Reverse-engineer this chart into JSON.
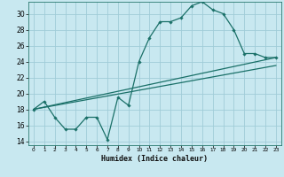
{
  "xlabel": "Humidex (Indice chaleur)",
  "bg_color": "#c8e8f0",
  "grid_color": "#a0ccd8",
  "line_color": "#1a7068",
  "xlim": [
    -0.5,
    23.5
  ],
  "ylim": [
    13.5,
    31.5
  ],
  "xticks": [
    0,
    1,
    2,
    3,
    4,
    5,
    6,
    7,
    8,
    9,
    10,
    11,
    12,
    13,
    14,
    15,
    16,
    17,
    18,
    19,
    20,
    21,
    22,
    23
  ],
  "yticks": [
    14,
    16,
    18,
    20,
    22,
    24,
    26,
    28,
    30
  ],
  "line1_x": [
    0,
    1,
    2,
    3,
    4,
    5,
    6,
    7,
    8,
    9,
    10,
    11,
    12,
    13,
    14,
    15,
    16,
    17,
    18,
    19,
    20,
    21,
    22,
    23
  ],
  "line1_y": [
    18,
    19,
    17,
    15.5,
    15.5,
    17,
    17,
    14.2,
    19.5,
    18.5,
    24,
    27,
    29,
    29,
    29.5,
    31,
    31.5,
    30.5,
    30,
    28,
    25,
    25,
    24.5,
    24.5
  ],
  "line2_x": [
    0,
    23
  ],
  "line2_y": [
    18.0,
    24.5
  ],
  "line3_x": [
    0,
    23
  ],
  "line3_y": [
    18.0,
    23.5
  ]
}
